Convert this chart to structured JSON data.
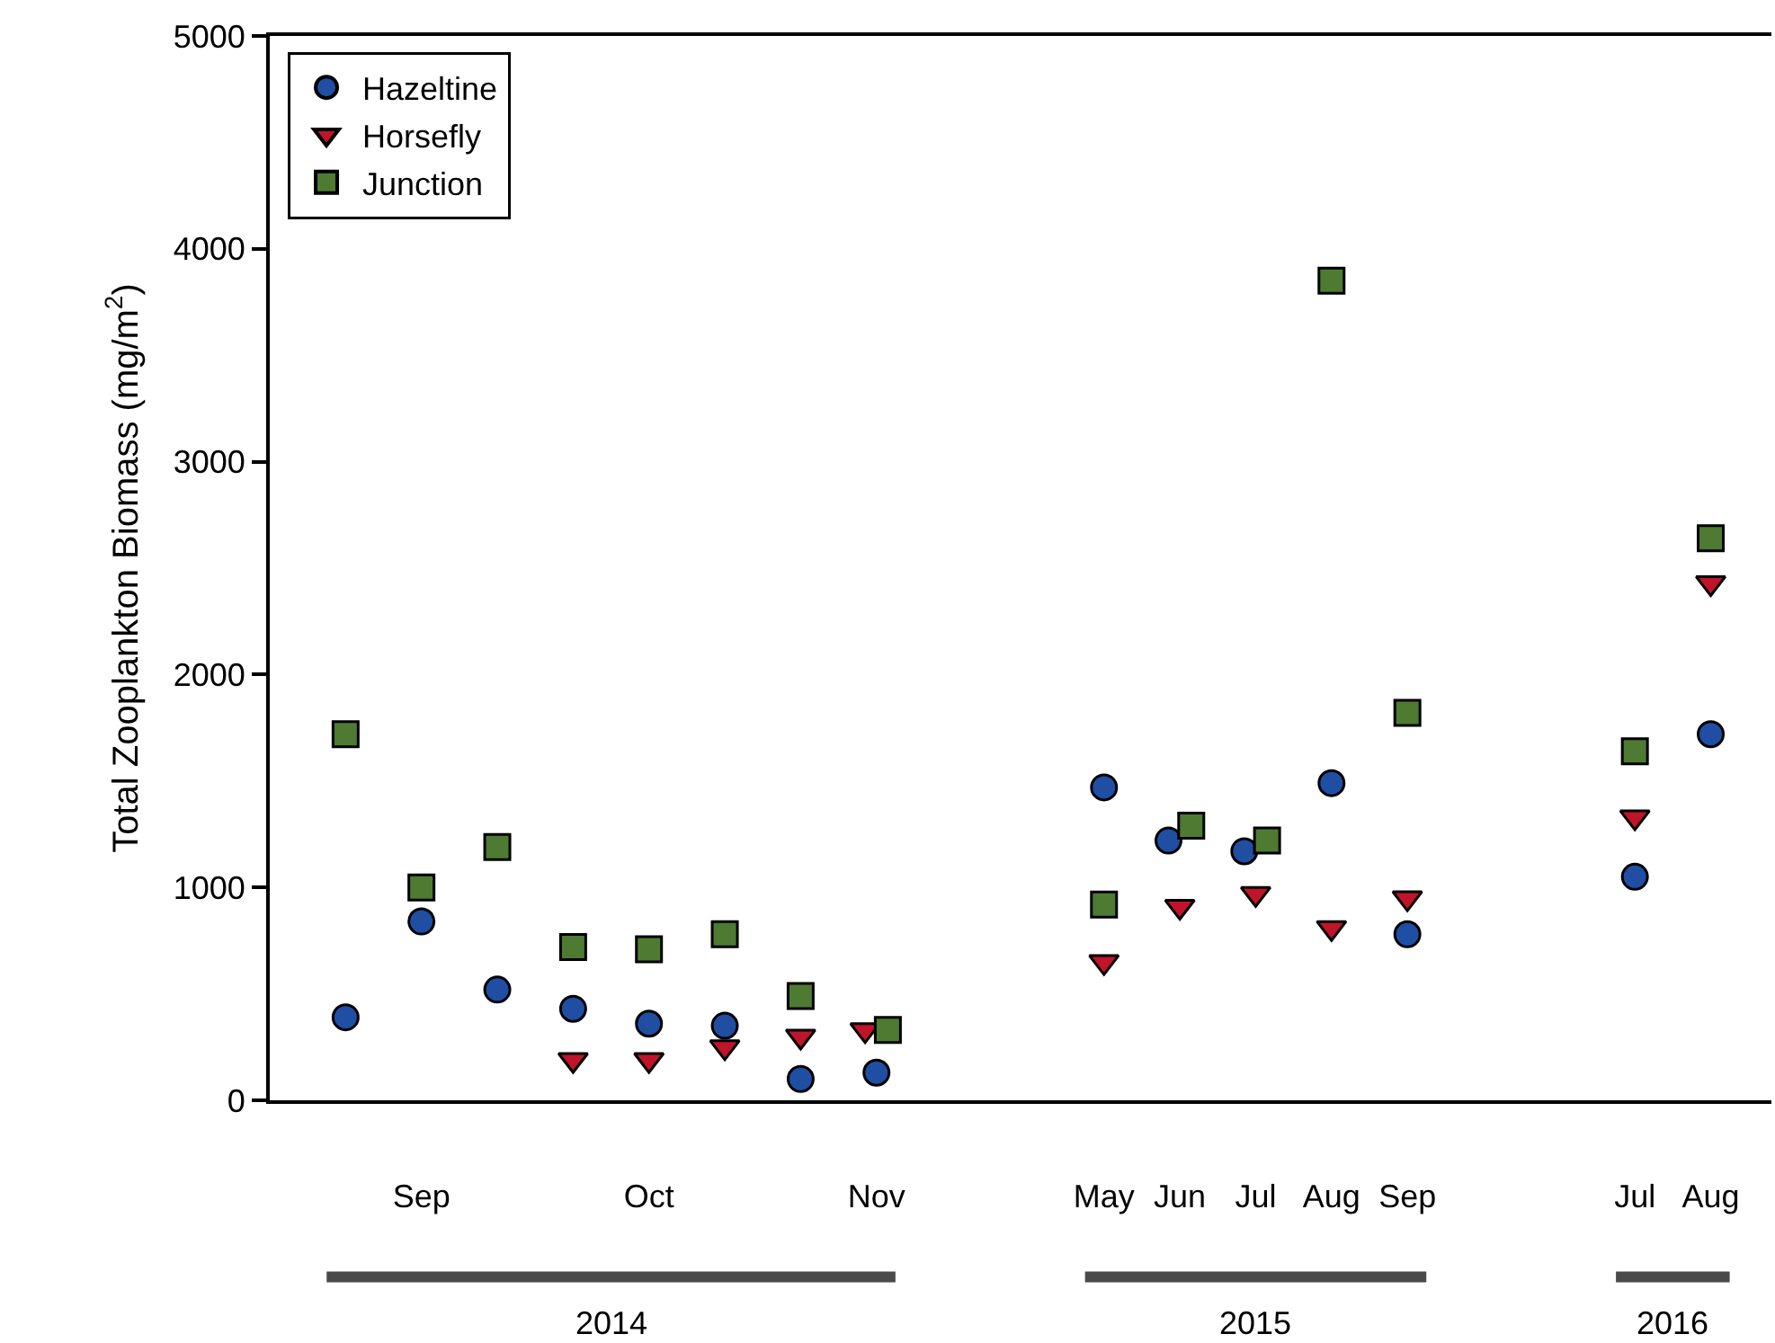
{
  "chart_data": {
    "type": "scatter",
    "ylabel": "Total Zooplankton Biomass (mg/m$^{2}$)",
    "categories": [
      null,
      "Sep",
      null,
      null,
      "Oct",
      null,
      null,
      "Nov",
      null,
      null,
      "May",
      "Jun",
      "Jul",
      "Aug",
      "Sep",
      null,
      null,
      "Jul",
      "Aug"
    ],
    "series": [
      {
        "name": "Hazeltine",
        "color": "#1f4ea3",
        "marker": "circle",
        "values": [
          390,
          840,
          520,
          430,
          360,
          350,
          100,
          130,
          null,
          null,
          1470,
          1220,
          1170,
          1490,
          780,
          null,
          null,
          1050,
          1720
        ]
      },
      {
        "name": "Horsefly",
        "color": "#c0142a",
        "marker": "triangle",
        "values": [
          null,
          null,
          null,
          190,
          190,
          250,
          300,
          330,
          null,
          null,
          650,
          910,
          970,
          810,
          950,
          null,
          null,
          1330,
          2430
        ]
      },
      {
        "name": "Junction",
        "color": "#4e7a32",
        "marker": "square",
        "values": [
          1720,
          1000,
          1190,
          720,
          710,
          780,
          490,
          330,
          null,
          null,
          920,
          1290,
          1220,
          3850,
          1820,
          null,
          null,
          1640,
          2640
        ]
      }
    ],
    "annotations": [
      "2014",
      "2015",
      "2016"
    ],
    "ylim": [
      0,
      5000
    ],
    "yticks": [
      0,
      1000,
      2000,
      3000,
      4000,
      5000
    ],
    "legend": "top left"
  }
}
